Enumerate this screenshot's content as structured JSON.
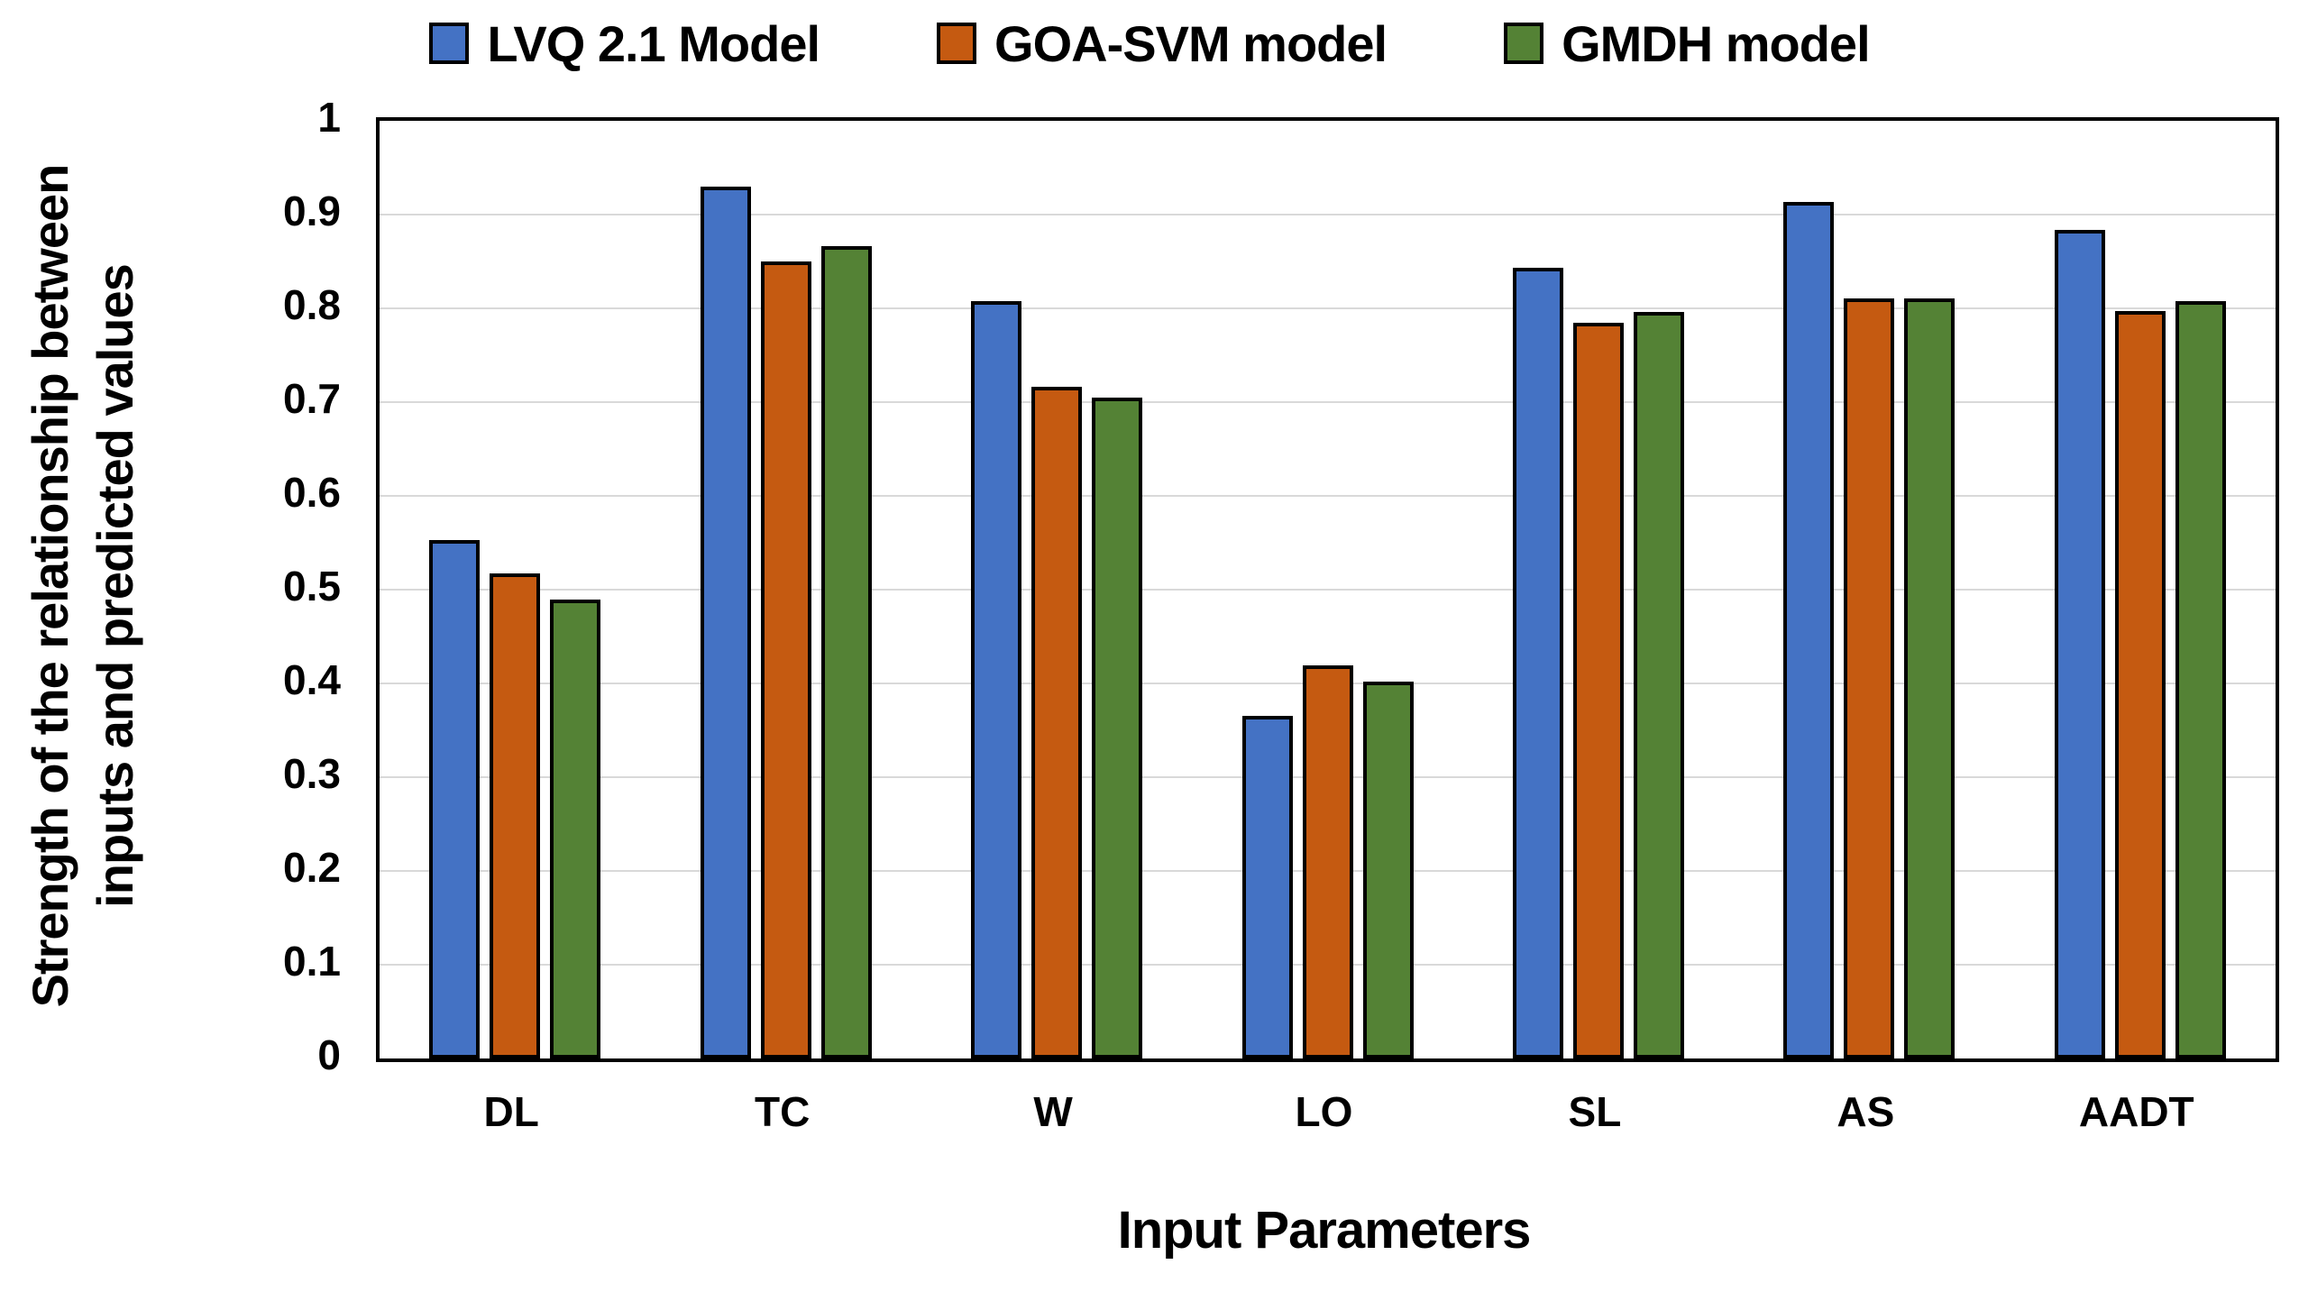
{
  "chart_data": {
    "type": "bar",
    "title": "",
    "xlabel": "Input Parameters",
    "ylabel": "Strength of the relationship between inputs and predicted values",
    "ylabel_lines": [
      "Strength of the relationship between",
      "inputs and predicted values"
    ],
    "categories": [
      "DL",
      "TC",
      "W",
      "LO",
      "SL",
      "AS",
      "AADT"
    ],
    "series": [
      {
        "name": "LVQ 2.1 Model",
        "color": "#4472C4",
        "values": [
          0.553,
          0.93,
          0.808,
          0.365,
          0.843,
          0.913,
          0.884
        ]
      },
      {
        "name": "GOA-SVM model",
        "color": "#C55A11",
        "values": [
          0.517,
          0.85,
          0.716,
          0.419,
          0.785,
          0.811,
          0.797
        ]
      },
      {
        "name": "GMDH model",
        "color": "#548235",
        "values": [
          0.489,
          0.866,
          0.705,
          0.402,
          0.796,
          0.811,
          0.808
        ]
      }
    ],
    "ylim": [
      0,
      1
    ],
    "ytick_step": 0.1,
    "yticks": [
      "0",
      "0.1",
      "0.2",
      "0.3",
      "0.4",
      "0.5",
      "0.6",
      "0.7",
      "0.8",
      "0.9",
      "1"
    ],
    "grid": true,
    "gridline_color": "#D9D9D9",
    "axis_border_color": "#000000",
    "bar_border_color": "#000000",
    "legend_position": "top"
  }
}
